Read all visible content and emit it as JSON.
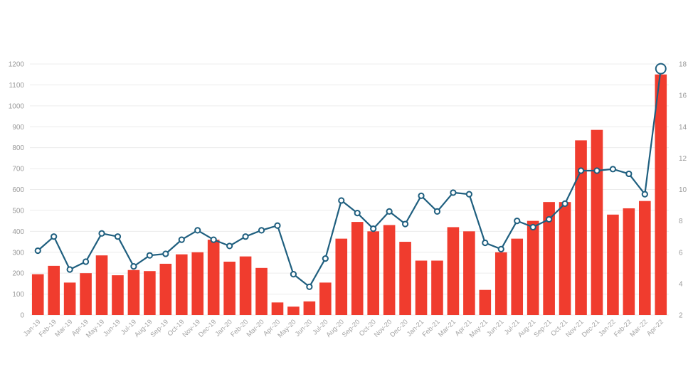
{
  "chart_data": {
    "type": "bar",
    "categories": [
      "Jan-19",
      "Feb-19",
      "Mar-19",
      "Apr-19",
      "May-19",
      "Jun-19",
      "Jul-19",
      "Aug-19",
      "Sep-19",
      "Oct-19",
      "Nov-19",
      "Dec-19",
      "Jan-20",
      "Feb-20",
      "Mar-20",
      "Apr-20",
      "May-20",
      "Jun-20",
      "Jul-20",
      "Aug-20",
      "Sep-20",
      "Oct-20",
      "Nov-20",
      "Dec-20",
      "Jan-21",
      "Feb-21",
      "Mar-21",
      "Apr-21",
      "May-21",
      "Jun-21",
      "Jul-21",
      "Aug-21",
      "Sep-21",
      "Oct-21",
      "Nov-21",
      "Dec-21",
      "Jan-22",
      "Feb-22",
      "Mar-22",
      "Apr-22"
    ],
    "series": [
      {
        "type": "bar",
        "axis": "left",
        "color": "#f03c2e",
        "values": [
          195,
          235,
          155,
          200,
          285,
          190,
          215,
          210,
          245,
          290,
          300,
          360,
          255,
          280,
          225,
          60,
          40,
          65,
          155,
          365,
          445,
          400,
          430,
          350,
          260,
          260,
          420,
          400,
          120,
          300,
          365,
          450,
          540,
          540,
          835,
          885,
          480,
          510,
          545,
          1150
        ]
      },
      {
        "type": "line",
        "axis": "right",
        "color": "#1f5f7f",
        "values": [
          6.1,
          7.0,
          4.9,
          5.4,
          7.2,
          7.0,
          5.1,
          5.8,
          5.9,
          6.8,
          7.4,
          6.8,
          6.4,
          7.0,
          7.4,
          7.7,
          4.6,
          3.8,
          5.6,
          9.3,
          8.5,
          7.5,
          8.6,
          7.8,
          9.6,
          8.6,
          9.8,
          9.7,
          6.6,
          6.2,
          8.0,
          7.6,
          8.1,
          9.1,
          11.2,
          11.2,
          11.3,
          11.0,
          9.7,
          17.7
        ]
      }
    ],
    "y_left": {
      "ylim": [
        0,
        1200
      ],
      "ticks": [
        "0",
        "100",
        "200",
        "300",
        "400",
        "500",
        "600",
        "700",
        "800",
        "900",
        "1000",
        "1100",
        "1200"
      ]
    },
    "y_right": {
      "ylim": [
        2,
        18
      ],
      "ticks": [
        "2",
        "4",
        "6",
        "8",
        "10",
        "12",
        "14",
        "16",
        "18"
      ]
    },
    "grid": true,
    "title": "",
    "xlabel": "",
    "ylabel": ""
  }
}
